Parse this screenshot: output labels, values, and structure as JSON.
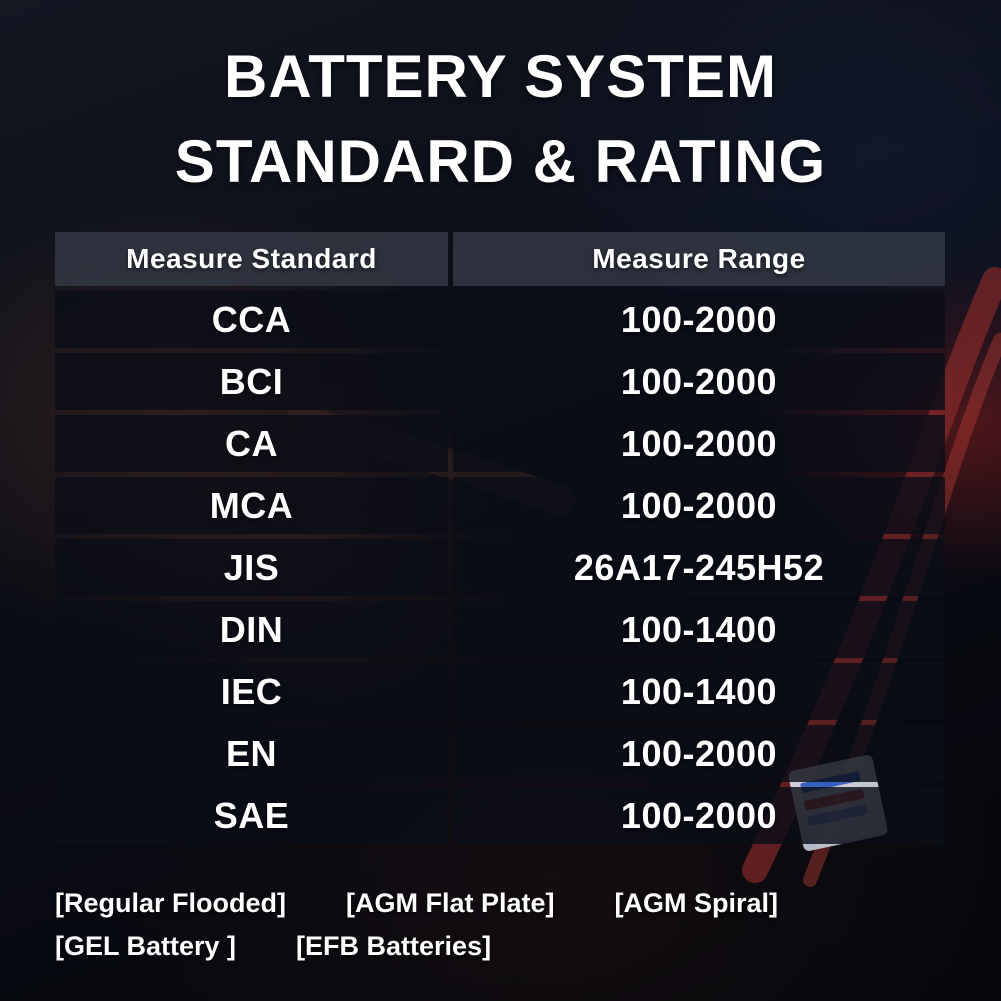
{
  "title": {
    "line1": "BATTERY SYSTEM",
    "line2": "STANDARD & RATING"
  },
  "table": {
    "headers": [
      "Measure Standard",
      "Measure Range"
    ],
    "rows": [
      [
        "CCA",
        "100-2000"
      ],
      [
        "BCI",
        "100-2000"
      ],
      [
        "CA",
        "100-2000"
      ],
      [
        "MCA",
        "100-2000"
      ],
      [
        "JIS",
        "26A17-245H52"
      ],
      [
        "DIN",
        "100-1400"
      ],
      [
        "IEC",
        "100-1400"
      ],
      [
        "EN",
        "100-2000"
      ],
      [
        "SAE",
        "100-2000"
      ]
    ]
  },
  "battery_types": {
    "line1": [
      "[Regular Flooded]",
      "[AGM Flat Plate]",
      "[AGM Spiral]"
    ],
    "line2": [
      "[GEL Battery ]",
      "[EFB Batteries]"
    ]
  },
  "colors": {
    "background": "#0a0c14",
    "row_background": "rgba(11,14,23,0.82)",
    "header_background": "rgba(52,57,70,0.82)",
    "text": "#ffffff",
    "cable_red": "#8c2b2b"
  },
  "chart_data": {
    "type": "table",
    "title": "BATTERY SYSTEM STANDARD & RATING",
    "columns": [
      "Measure Standard",
      "Measure Range"
    ],
    "rows": [
      [
        "CCA",
        "100-2000"
      ],
      [
        "BCI",
        "100-2000"
      ],
      [
        "CA",
        "100-2000"
      ],
      [
        "MCA",
        "100-2000"
      ],
      [
        "JIS",
        "26A17-245H52"
      ],
      [
        "DIN",
        "100-1400"
      ],
      [
        "IEC",
        "100-1400"
      ],
      [
        "EN",
        "100-2000"
      ],
      [
        "SAE",
        "100-2000"
      ]
    ],
    "footnotes": [
      "[Regular Flooded]",
      "[AGM Flat Plate]",
      "[AGM Spiral]",
      "[GEL Battery ]",
      "[EFB Batteries]"
    ]
  }
}
